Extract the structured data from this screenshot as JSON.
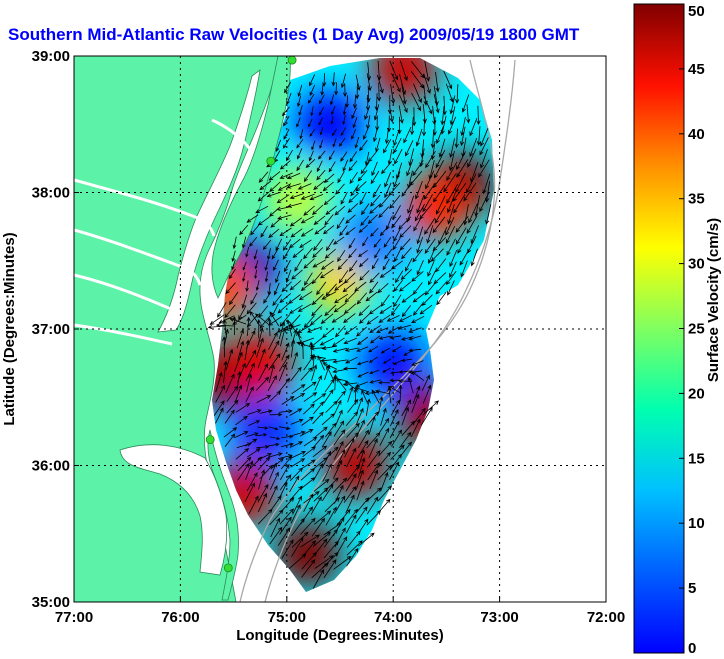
{
  "title": "Southern Mid-Atlantic Raw Velocities (1 Day Avg) 2009/05/19 1800 GMT",
  "colors": {
    "land": "#5cf2a8",
    "water": "#ffffff",
    "coastline": "#2a8a5a",
    "bathymetry": "#a8a8a8",
    "vectors": "#000000",
    "stations": "#33dd33",
    "title": "#0000ff"
  },
  "map": {
    "xlabel": "Longitude (Degrees:Minutes)",
    "ylabel": "Latitude (Degrees:Minutes)",
    "lon_range": [
      -77,
      -72
    ],
    "lat_range": [
      35,
      39
    ],
    "lon_ticks": [
      {
        "value": -77,
        "label": "77:00"
      },
      {
        "value": -76,
        "label": "76:00"
      },
      {
        "value": -75,
        "label": "75:00"
      },
      {
        "value": -74,
        "label": "74:00"
      },
      {
        "value": -73,
        "label": "73:00"
      },
      {
        "value": -72,
        "label": "72:00"
      }
    ],
    "lat_ticks": [
      {
        "value": 39,
        "label": "39:00"
      },
      {
        "value": 38,
        "label": "38:00"
      },
      {
        "value": 37,
        "label": "37:00"
      },
      {
        "value": 36,
        "label": "36:00"
      },
      {
        "value": 35,
        "label": "35:00"
      }
    ],
    "grid": "dotted"
  },
  "colorbar": {
    "label": "Surface Velocity (cm/s)",
    "range": [
      0,
      50
    ],
    "ticks": [
      {
        "value": 50,
        "label": "50"
      },
      {
        "value": 45,
        "label": "45"
      },
      {
        "value": 40,
        "label": "40"
      },
      {
        "value": 35,
        "label": "35"
      },
      {
        "value": 30,
        "label": "30"
      },
      {
        "value": 25,
        "label": "25"
      },
      {
        "value": 20,
        "label": "20"
      },
      {
        "value": 15,
        "label": "15"
      },
      {
        "value": 10,
        "label": "10"
      },
      {
        "value": 5,
        "label": "5"
      },
      {
        "value": 0,
        "label": "0"
      }
    ],
    "colormap": "jet"
  },
  "stations": [
    {
      "lon": -74.95,
      "lat": 38.97
    },
    {
      "lon": -75.15,
      "lat": 38.23
    },
    {
      "lon": -75.72,
      "lat": 36.19
    },
    {
      "lon": -75.55,
      "lat": 35.25
    }
  ],
  "hotspots": [
    {
      "lon": -75.6,
      "lat": 36.65,
      "speed": 49,
      "dir": 10
    },
    {
      "lon": -75.25,
      "lat": 36.75,
      "speed": 45,
      "dir": 20
    },
    {
      "lon": -73.35,
      "lat": 38.05,
      "speed": 50,
      "dir": 200
    },
    {
      "lon": -73.6,
      "lat": 37.9,
      "speed": 42,
      "dir": 210
    },
    {
      "lon": -73.9,
      "lat": 38.9,
      "speed": 46,
      "dir": 150
    },
    {
      "lon": -73.65,
      "lat": 36.35,
      "speed": 48,
      "dir": 40
    },
    {
      "lon": -74.35,
      "lat": 36.0,
      "speed": 47,
      "dir": 30
    },
    {
      "lon": -74.8,
      "lat": 35.35,
      "speed": 50,
      "dir": 45
    },
    {
      "lon": -75.4,
      "lat": 35.8,
      "speed": 46,
      "dir": 20
    },
    {
      "lon": -74.5,
      "lat": 37.35,
      "speed": 33,
      "dir": 230
    },
    {
      "lon": -74.9,
      "lat": 37.95,
      "speed": 28,
      "dir": 250
    },
    {
      "lon": -75.35,
      "lat": 37.45,
      "speed": 3,
      "dir": 180
    },
    {
      "lon": -74.6,
      "lat": 38.5,
      "speed": 6,
      "dir": 200
    },
    {
      "lon": -74.0,
      "lat": 36.75,
      "speed": 7,
      "dir": 250
    },
    {
      "lon": -75.2,
      "lat": 36.25,
      "speed": 8,
      "dir": 100
    },
    {
      "lon": -74.2,
      "lat": 37.65,
      "speed": 12,
      "dir": 220
    },
    {
      "lon": -75.6,
      "lat": 37.3,
      "speed": 40,
      "dir": 230
    }
  ]
}
